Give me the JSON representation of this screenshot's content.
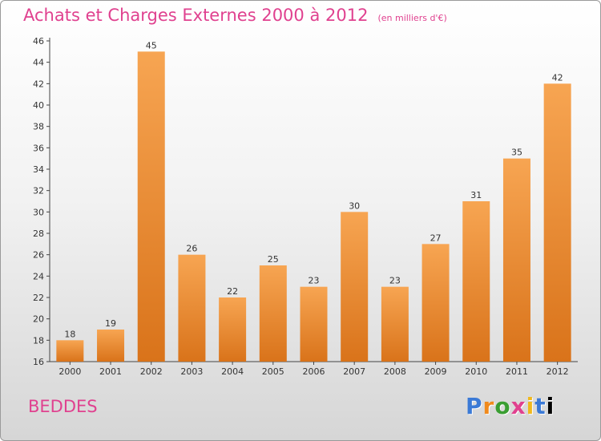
{
  "chart_data": {
    "type": "bar",
    "title": "Achats et Charges Externes 2000 à 2012",
    "subtitle": "(en milliers d'€)",
    "categories": [
      "2000",
      "2001",
      "2002",
      "2003",
      "2004",
      "2005",
      "2006",
      "2007",
      "2008",
      "2009",
      "2010",
      "2011",
      "2012"
    ],
    "values": [
      18,
      19,
      45,
      26,
      22,
      25,
      23,
      30,
      23,
      27,
      31,
      35,
      42
    ],
    "ylim": [
      16,
      46
    ],
    "yticks": [
      16,
      18,
      20,
      22,
      24,
      26,
      28,
      30,
      32,
      34,
      36,
      38,
      40,
      42,
      44,
      46
    ],
    "grid": false,
    "bar_color_top": "#f7a552",
    "bar_color_bottom": "#d9731a"
  },
  "footer": {
    "commune": "BEDDES",
    "logo_letters": [
      "P",
      "r",
      "o",
      "x",
      "i",
      "t",
      "i"
    ]
  }
}
